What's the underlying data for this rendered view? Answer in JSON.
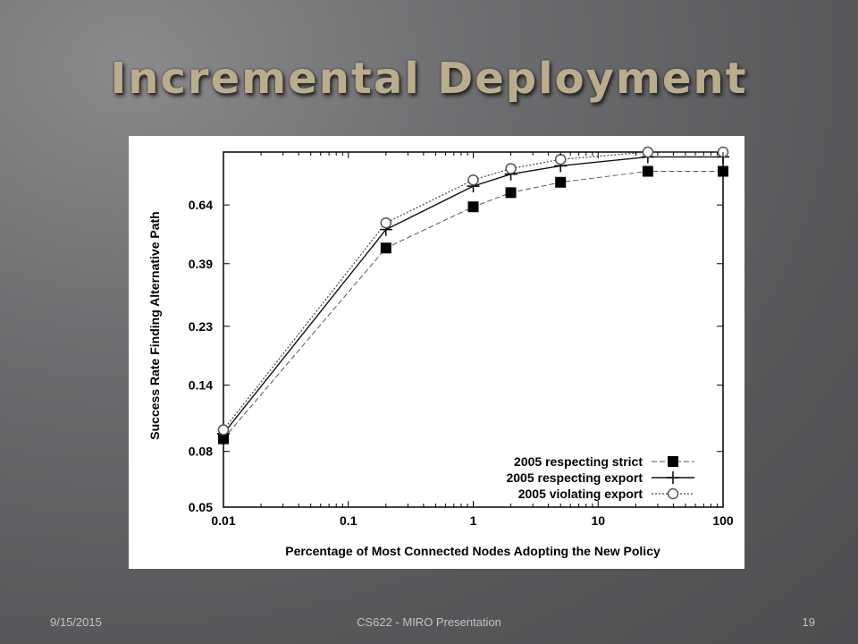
{
  "slide": {
    "title": "Incremental Deployment",
    "footer_date": "9/15/2015",
    "footer_center": "CS622 - MIRO Presentation",
    "page_number": "19"
  },
  "chart_data": {
    "type": "line",
    "xlabel": "Percentage of Most Connected Nodes Adopting the New Policy",
    "ylabel": "Success Rate Finding Alternative Path",
    "x_scale": "log",
    "y_scale": "log",
    "xlim": [
      0.01,
      100
    ],
    "ylim": [
      0.05,
      1.0
    ],
    "x_ticks": [
      0.01,
      0.1,
      1,
      10,
      100
    ],
    "x_tick_labels": [
      "0.01",
      "0.1",
      "1",
      "10",
      "100"
    ],
    "y_ticks": [
      0.05,
      0.08,
      0.14,
      0.23,
      0.39,
      0.64
    ],
    "y_tick_labels": [
      "0.05",
      "0.08",
      "0.14",
      "0.23",
      "0.39",
      "0.64"
    ],
    "grid": false,
    "legend_position": "bottom-right",
    "series": [
      {
        "name": "2005 respecting strict",
        "marker": "filled-square",
        "line_style": "dashed",
        "x": [
          0.01,
          0.2,
          1,
          2,
          5,
          25,
          100
        ],
        "y": [
          0.089,
          0.445,
          0.63,
          0.71,
          0.775,
          0.85,
          0.85
        ]
      },
      {
        "name": "2005 respecting export",
        "marker": "plus",
        "line_style": "solid",
        "x": [
          0.01,
          0.2,
          1,
          2,
          5,
          25,
          100
        ],
        "y": [
          0.093,
          0.52,
          0.75,
          0.83,
          0.89,
          0.96,
          0.96
        ]
      },
      {
        "name": "2005 violating export",
        "marker": "open-circle",
        "line_style": "dotted",
        "x": [
          0.01,
          0.2,
          1,
          2,
          5,
          25,
          100
        ],
        "y": [
          0.096,
          0.55,
          0.79,
          0.87,
          0.94,
          1.0,
          1.0
        ]
      }
    ]
  }
}
